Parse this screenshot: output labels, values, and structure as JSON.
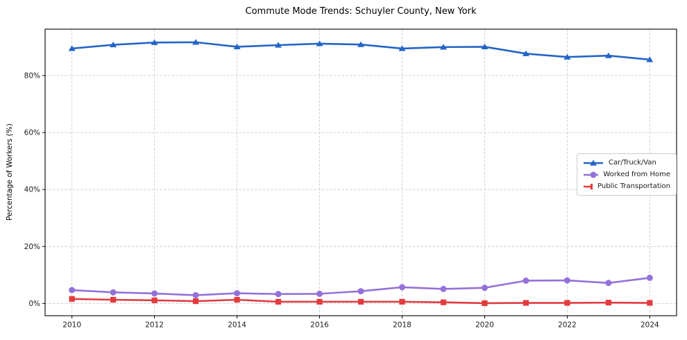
{
  "chart_data": {
    "type": "line",
    "title": "Commute Mode Trends: Schuyler County, New York",
    "xlabel": "",
    "ylabel": "Percentage of Workers (%)",
    "x": [
      2010,
      2011,
      2012,
      2013,
      2014,
      2015,
      2016,
      2017,
      2018,
      2019,
      2020,
      2021,
      2022,
      2023,
      2024
    ],
    "series": [
      {
        "name": "Car/Truck/Van",
        "color": "#2364c6",
        "marker": "triangle",
        "values": [
          89.5,
          90.8,
          91.6,
          91.7,
          90.1,
          90.7,
          91.2,
          90.9,
          89.5,
          90.0,
          90.1,
          87.7,
          86.5,
          87.0,
          85.6
        ]
      },
      {
        "name": "Worked from Home",
        "color": "#9471d9",
        "marker": "circle",
        "values": [
          4.7,
          3.9,
          3.5,
          2.9,
          3.6,
          3.3,
          3.4,
          4.3,
          5.7,
          5.1,
          5.5,
          8.0,
          8.1,
          7.2,
          9.0
        ]
      },
      {
        "name": "Public Transportation",
        "color": "#e33b3f",
        "marker": "square",
        "values": [
          1.6,
          1.3,
          1.1,
          0.8,
          1.3,
          0.6,
          0.6,
          0.6,
          0.6,
          0.4,
          0.1,
          0.2,
          0.2,
          0.3,
          0.2
        ]
      }
    ],
    "xticks": [
      2010,
      2012,
      2014,
      2016,
      2018,
      2020,
      2022,
      2024
    ],
    "xtick_labels": [
      "2010",
      "2012",
      "2014",
      "2016",
      "2018",
      "2020",
      "2022",
      "2024"
    ],
    "yticks": [
      0,
      20,
      40,
      60,
      80
    ],
    "ytick_labels": [
      "0%",
      "20%",
      "40%",
      "60%",
      "80%"
    ],
    "xlim": [
      2009.35,
      2024.65
    ],
    "ylim": [
      -4.3,
      96.3
    ],
    "grid": true,
    "grid_style": "dashed",
    "legend_position": "center right",
    "colors": {
      "grid": "#cccccc",
      "spine": "#000000",
      "tick_text": "#1a1a1a",
      "background": "#ffffff"
    }
  }
}
